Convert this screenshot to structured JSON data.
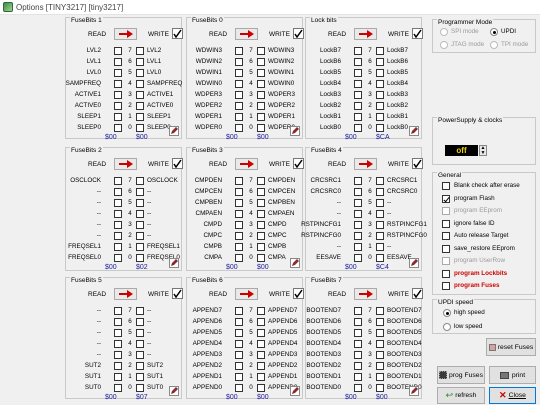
{
  "window": {
    "title": "Options [TINY3217] [tiny3217]"
  },
  "labels": {
    "read": "READ",
    "write": "WRITE"
  },
  "groups": [
    {
      "title": "FuseBits 1",
      "rows": [
        [
          "LVL2",
          "7",
          "LVL2"
        ],
        [
          "LVL1",
          "6",
          "LVL1"
        ],
        [
          "LVL0",
          "5",
          "LVL0"
        ],
        [
          "SAMPFREQ",
          "4",
          "SAMPFREQ"
        ],
        [
          "ACTIVE1",
          "3",
          "ACTIVE1"
        ],
        [
          "ACTIVE0",
          "2",
          "ACTIVE0"
        ],
        [
          "SLEEP1",
          "1",
          "SLEEP1"
        ],
        [
          "SLEEP0",
          "0",
          "SLEEP0"
        ]
      ],
      "v1": "$00",
      "v2": "$00"
    },
    {
      "title": "FuseBits 0",
      "rows": [
        [
          "WDWIN3",
          "7",
          "WDWIN3"
        ],
        [
          "WDWIN2",
          "6",
          "WDWIN2"
        ],
        [
          "WDWIN1",
          "5",
          "WDWIN1"
        ],
        [
          "WDWIN0",
          "4",
          "WDWIN0"
        ],
        [
          "WDPER3",
          "3",
          "WDPER3"
        ],
        [
          "WDPER2",
          "2",
          "WDPER2"
        ],
        [
          "WDPER1",
          "1",
          "WDPER1"
        ],
        [
          "WDPER0",
          "0",
          "WDPER0"
        ]
      ],
      "v1": "$00",
      "v2": "$00"
    },
    {
      "title": "Lock bits",
      "rows": [
        [
          "LockB7",
          "7",
          "LockB7"
        ],
        [
          "LockB6",
          "6",
          "LockB6"
        ],
        [
          "LockB5",
          "5",
          "LockB5"
        ],
        [
          "LockB4",
          "4",
          "LockB4"
        ],
        [
          "LockB3",
          "3",
          "LockB3"
        ],
        [
          "LockB2",
          "2",
          "LockB2"
        ],
        [
          "LockB1",
          "1",
          "LockB1"
        ],
        [
          "LockB0",
          "0",
          "LockB0"
        ]
      ],
      "v1": "$00",
      "v2": "$CA"
    },
    {
      "title": "FuseBits 2",
      "rows": [
        [
          "OSCLOCK",
          "7",
          "OSCLOCK"
        ],
        [
          "--",
          "6",
          "--"
        ],
        [
          "--",
          "5",
          "--"
        ],
        [
          "--",
          "4",
          "--"
        ],
        [
          "--",
          "3",
          "--"
        ],
        [
          "--",
          "2",
          "--"
        ],
        [
          "FREQSEL1",
          "1",
          "FREQSEL1"
        ],
        [
          "FREQSEL0",
          "0",
          "FREQSEL0"
        ]
      ],
      "v1": "$00",
      "v2": "$02"
    },
    {
      "title": "FuseBits 3",
      "rows": [
        [
          "CMPDEN",
          "7",
          "CMPDEN"
        ],
        [
          "CMPCEN",
          "6",
          "CMPCEN"
        ],
        [
          "CMPBEN",
          "5",
          "CMPBEN"
        ],
        [
          "CMPAEN",
          "4",
          "CMPAEN"
        ],
        [
          "CMPD",
          "3",
          "CMPD"
        ],
        [
          "CMPC",
          "2",
          "CMPC"
        ],
        [
          "CMPB",
          "1",
          "CMPB"
        ],
        [
          "CMPA",
          "0",
          "CMPA"
        ]
      ],
      "v1": "$00",
      "v2": "$00"
    },
    {
      "title": "FuseBits 4",
      "rows": [
        [
          "CRCSRC1",
          "7",
          "CRCSRC1"
        ],
        [
          "CRCSRC0",
          "6",
          "CRCSRC0"
        ],
        [
          "--",
          "5",
          "--"
        ],
        [
          "--",
          "4",
          "--"
        ],
        [
          "RSTPINCFG1",
          "3",
          "RSTPINCFG1"
        ],
        [
          "RSTPINCFG0",
          "2",
          "RSTPINCFG0"
        ],
        [
          "--",
          "1",
          "--"
        ],
        [
          "EESAVE",
          "0",
          "EESAVE"
        ]
      ],
      "v1": "$00",
      "v2": "$C4"
    },
    {
      "title": "FuseBits 5",
      "rows": [
        [
          "--",
          "7",
          "--"
        ],
        [
          "--",
          "6",
          "--"
        ],
        [
          "--",
          "5",
          "--"
        ],
        [
          "--",
          "4",
          "--"
        ],
        [
          "--",
          "3",
          "--"
        ],
        [
          "SUT2",
          "2",
          "SUT2"
        ],
        [
          "SUT1",
          "1",
          "SUT1"
        ],
        [
          "SUT0",
          "0",
          "SUT0"
        ]
      ],
      "v1": "$00",
      "v2": "$07"
    },
    {
      "title": "FuseBits 6",
      "rows": [
        [
          "APPEND7",
          "7",
          "APPEND7"
        ],
        [
          "APPEND6",
          "6",
          "APPEND6"
        ],
        [
          "APPEND5",
          "5",
          "APPEND5"
        ],
        [
          "APPEND4",
          "4",
          "APPEND4"
        ],
        [
          "APPEND3",
          "3",
          "APPEND3"
        ],
        [
          "APPEND2",
          "2",
          "APPEND2"
        ],
        [
          "APPEND1",
          "1",
          "APPEND1"
        ],
        [
          "APPEND0",
          "0",
          "APPEND0"
        ]
      ],
      "v1": "$00",
      "v2": "$00"
    },
    {
      "title": "FuseBits 7",
      "rows": [
        [
          "BOOTEND7",
          "7",
          "BOOTEND7"
        ],
        [
          "BOOTEND6",
          "6",
          "BOOTEND6"
        ],
        [
          "BOOTEND5",
          "5",
          "BOOTEND5"
        ],
        [
          "BOOTEND4",
          "4",
          "BOOTEND4"
        ],
        [
          "BOOTEND3",
          "3",
          "BOOTEND3"
        ],
        [
          "BOOTEND2",
          "2",
          "BOOTEND2"
        ],
        [
          "BOOTEND1",
          "1",
          "BOOTEND1"
        ],
        [
          "BOOTEND0",
          "0",
          "BOOTEND0"
        ]
      ],
      "v1": "$00",
      "v2": "$00"
    }
  ],
  "programmer": {
    "title": "Programmer Mode",
    "spi": "SPI mode",
    "updi": "UPDI",
    "jtag": "JTAG mode",
    "tpi": "TPI mode"
  },
  "power": {
    "title": "PowerSupply & clocks",
    "value": "off"
  },
  "general": {
    "title": "General",
    "items": [
      {
        "label": "Blank check after erase",
        "checked": false,
        "color": "#000000"
      },
      {
        "label": "program Flash",
        "checked": true,
        "color": "#000000"
      },
      {
        "label": "program EEprom",
        "checked": false,
        "color": "#9a9a9a"
      },
      {
        "label": "ignore false ID",
        "checked": false,
        "color": "#000000"
      },
      {
        "label": "Auto release Target",
        "checked": false,
        "color": "#000000"
      },
      {
        "label": "save_restore EEprom",
        "checked": false,
        "color": "#000000"
      },
      {
        "label": "program UserRow",
        "checked": false,
        "color": "#9a9a9a"
      },
      {
        "label": "program Lockbits",
        "checked": false,
        "color": "#cc0000"
      },
      {
        "label": "program Fuses",
        "checked": false,
        "color": "#cc0000"
      }
    ]
  },
  "updi_speed": {
    "title": "UPDI speed",
    "high": "high speed",
    "low": "low speed"
  },
  "buttons": {
    "reset": "reset Fuses",
    "prog": "prog Fuses",
    "print": "print",
    "refresh": "refresh",
    "close": "Close"
  },
  "colors": {
    "accent": "#cc0000",
    "hex": "#1a1a9a",
    "ok": "#2a8a2a"
  }
}
